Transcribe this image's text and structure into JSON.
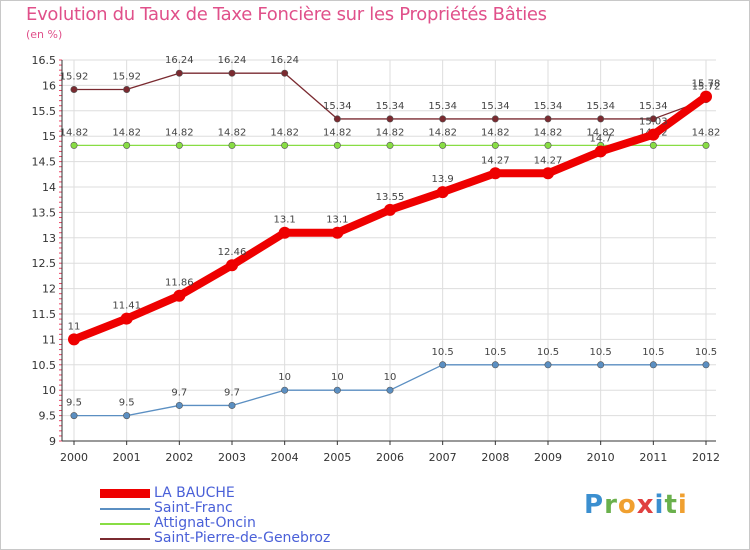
{
  "chart_data": {
    "type": "line",
    "title": "Evolution du Taux de Taxe Foncière sur les Propriétés Bâties",
    "subtitle": "(en %)",
    "x": [
      "2000",
      "2001",
      "2002",
      "2003",
      "2004",
      "2005",
      "2006",
      "2007",
      "2008",
      "2009",
      "2010",
      "2011",
      "2012"
    ],
    "ylim": [
      9,
      16.5
    ],
    "yticks": [
      "9",
      "9.5",
      "10",
      "10.5",
      "11",
      "11.5",
      "12",
      "12.5",
      "13",
      "13.5",
      "14",
      "14.5",
      "15",
      "15.5",
      "16",
      "16.5"
    ],
    "series": [
      {
        "name": "Saint-Pierre-de-Genebroz",
        "color": "#7a2a30",
        "values": [
          15.92,
          15.92,
          16.24,
          16.24,
          16.24,
          15.34,
          15.34,
          15.34,
          15.34,
          15.34,
          15.34,
          15.34,
          15.72
        ],
        "labels": [
          "15.92",
          "15.92",
          "16.24",
          "16.24",
          "16.24",
          "15.34",
          "15.34",
          "15.34",
          "15.34",
          "15.34",
          "15.34",
          "15.34",
          "15.72"
        ]
      },
      {
        "name": "Attignat-Oncin",
        "color": "#88dd44",
        "values": [
          14.82,
          14.82,
          14.82,
          14.82,
          14.82,
          14.82,
          14.82,
          14.82,
          14.82,
          14.82,
          14.82,
          14.82,
          14.82
        ],
        "labels": [
          "14.82",
          "14.82",
          "14.82",
          "14.82",
          "14.82",
          "14.82",
          "14.82",
          "14.82",
          "14.82",
          "14.82",
          "14.82",
          "14.82",
          "14.82"
        ]
      },
      {
        "name": "Saint-Franc",
        "color": "#5b8fc2",
        "values": [
          9.5,
          9.5,
          9.7,
          9.7,
          10,
          10,
          10,
          10.5,
          10.5,
          10.5,
          10.5,
          10.5,
          10.5
        ],
        "labels": [
          "9.5",
          "9.5",
          "9.7",
          "9.7",
          "10",
          "10",
          "10",
          "10.5",
          "10.5",
          "10.5",
          "10.5",
          "10.5",
          "10.5"
        ]
      },
      {
        "name": "LA BAUCHE",
        "color": "#ee0000",
        "values": [
          11,
          11.41,
          11.86,
          12.46,
          13.1,
          13.1,
          13.55,
          13.9,
          14.27,
          14.27,
          14.7,
          15.03,
          15.78
        ],
        "labels": [
          "11",
          "11.41",
          "11.86",
          "12.46",
          "13.1",
          "13.1",
          "13.55",
          "13.9",
          "14.27",
          "14.27",
          "14.7",
          "15.03",
          "15.78"
        ]
      }
    ],
    "legend": [
      "LA BAUCHE",
      "Saint-Franc",
      "Attignat-Oncin",
      "Saint-Pierre-de-Genebroz"
    ]
  },
  "logo": {
    "letters": [
      "P",
      "r",
      "o",
      "x",
      "i",
      "t",
      "i"
    ]
  }
}
